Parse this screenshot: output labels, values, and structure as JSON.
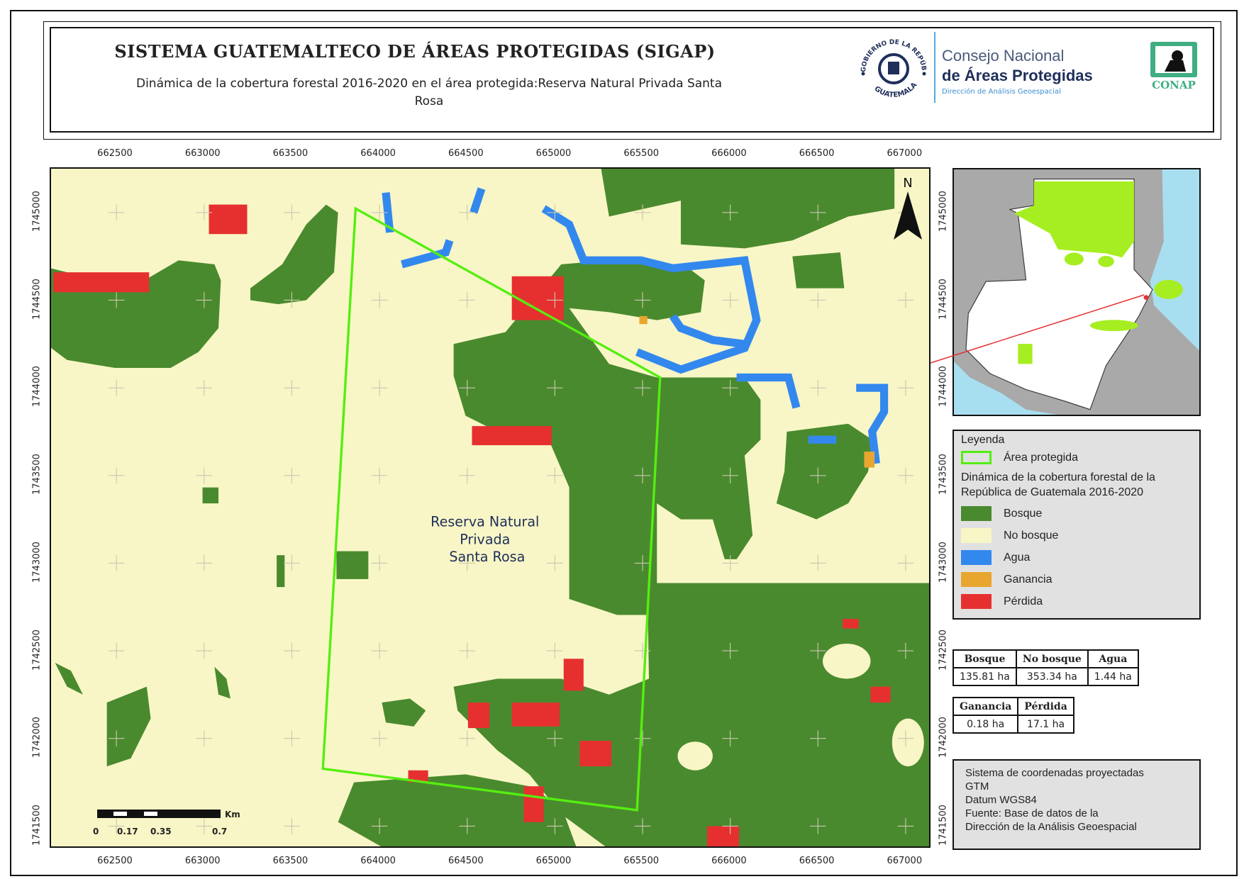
{
  "header": {
    "title": "SISTEMA GUATEMALTECO DE ÁREAS PROTEGIDAS  (SIGAP)",
    "subtitle": "Dinámica de la cobertura forestal 2016-2020 en el área protegida:Reserva Natural Privada Santa Rosa",
    "seal_text": "GOBIERNO DE LA REPÚBLICA · GUATEMALA",
    "org_line1": "Consejo Nacional",
    "org_line2": "de Áreas Protegidas",
    "org_line3": "Dirección de Análisis Geoespacial",
    "conap_logo": "CONAP"
  },
  "map": {
    "x_ticks": [
      "662500",
      "663000",
      "663500",
      "664000",
      "664500",
      "665000",
      "665500",
      "666000",
      "666500",
      "667000"
    ],
    "y_ticks": [
      "1745000",
      "1744500",
      "1744000",
      "1743500",
      "1743000",
      "1742500",
      "1742000",
      "1741500"
    ],
    "area_label": [
      "Reserva Natural",
      "Privada",
      "Santa Rosa"
    ],
    "north": "N",
    "scale": {
      "unit": "Km",
      "labels": [
        "0",
        "0.17",
        "0.35",
        "0.7"
      ]
    }
  },
  "legend": {
    "title": "Leyenda",
    "protected": "Área protegida",
    "subtitle": "Dinámica de la cobertura forestal de la República de Guatemala 2016-2020",
    "items": [
      {
        "label": "Bosque",
        "color": "#4a8a2e"
      },
      {
        "label": "No bosque",
        "color": "#f8f6c6"
      },
      {
        "label": "Agua",
        "color": "#3388ee"
      },
      {
        "label": "Ganancia",
        "color": "#e8a630"
      },
      {
        "label": "Pérdida",
        "color": "#e63030"
      }
    ],
    "protected_color": "#55ee11"
  },
  "stats1": {
    "headers": [
      "Bosque",
      "No bosque",
      "Agua"
    ],
    "values": [
      "135.81 ha",
      "353.34 ha",
      "1.44 ha"
    ]
  },
  "stats2": {
    "headers": [
      "Ganancia",
      "Pérdida"
    ],
    "values": [
      "0.18 ha",
      "17.1 ha"
    ]
  },
  "info": [
    "Sistema de coordenadas proyectadas",
    "GTM",
    "Datum WGS84",
    "Fuente: Base de datos de la",
    "Dirección de la Análisis Geoespacial"
  ]
}
